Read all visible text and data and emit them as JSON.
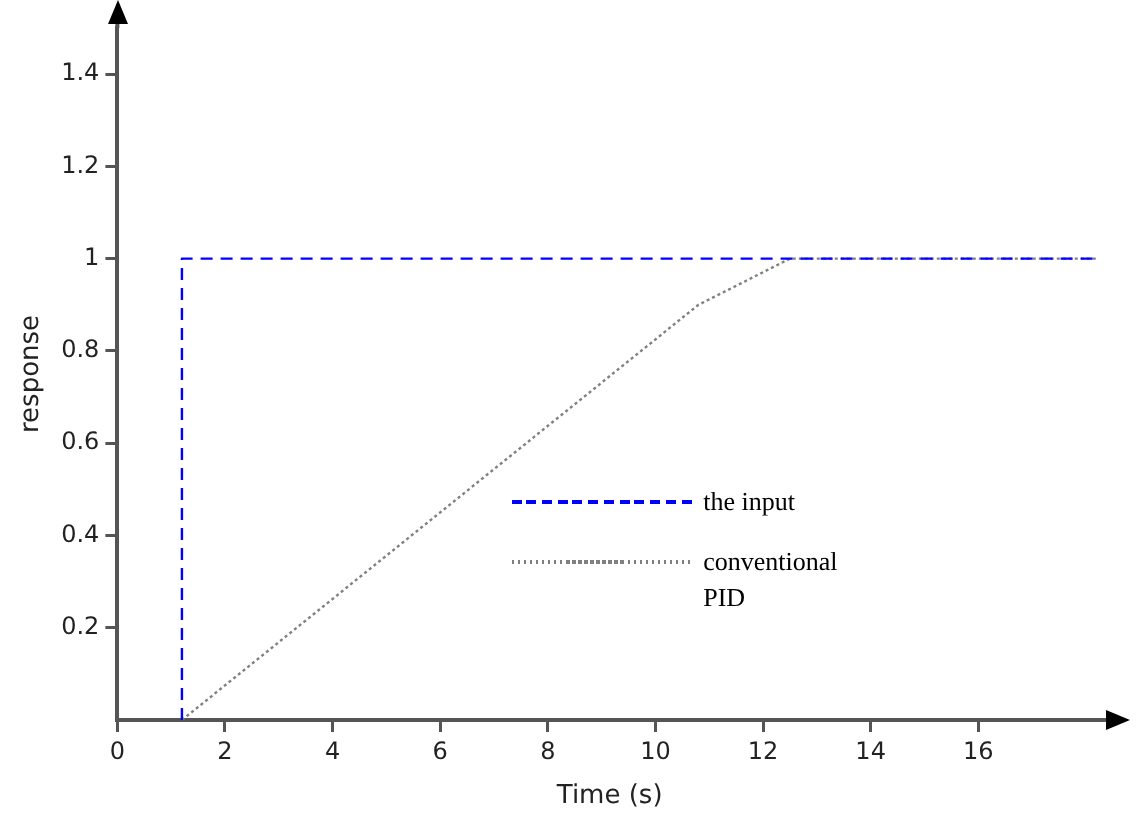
{
  "chart_data": {
    "type": "line",
    "xlabel": "Time (s)",
    "ylabel": "response",
    "xlim": [
      0,
      18.3
    ],
    "xticks": [
      0,
      2,
      4,
      6,
      8,
      10,
      12,
      14,
      16
    ],
    "ylim": [
      0,
      1.5
    ],
    "yticks": [
      0.2,
      0.4,
      0.6,
      0.8,
      1.0,
      1.2,
      1.4
    ],
    "grid": false,
    "legend": "bottom right",
    "marker": "none",
    "series": [
      {
        "name": "the input",
        "color": "#0000ff",
        "line_style": "dashed",
        "x": [
          1.2,
          1.2,
          18.2
        ],
        "values": [
          0,
          1.0,
          1.0
        ]
      },
      {
        "name": "conventional PID",
        "color": "#808080",
        "line_style": "dotted",
        "x": [
          1.2,
          10.8,
          12.5,
          18.2
        ],
        "values": [
          0,
          0.9,
          1.0,
          1.0
        ]
      }
    ]
  }
}
